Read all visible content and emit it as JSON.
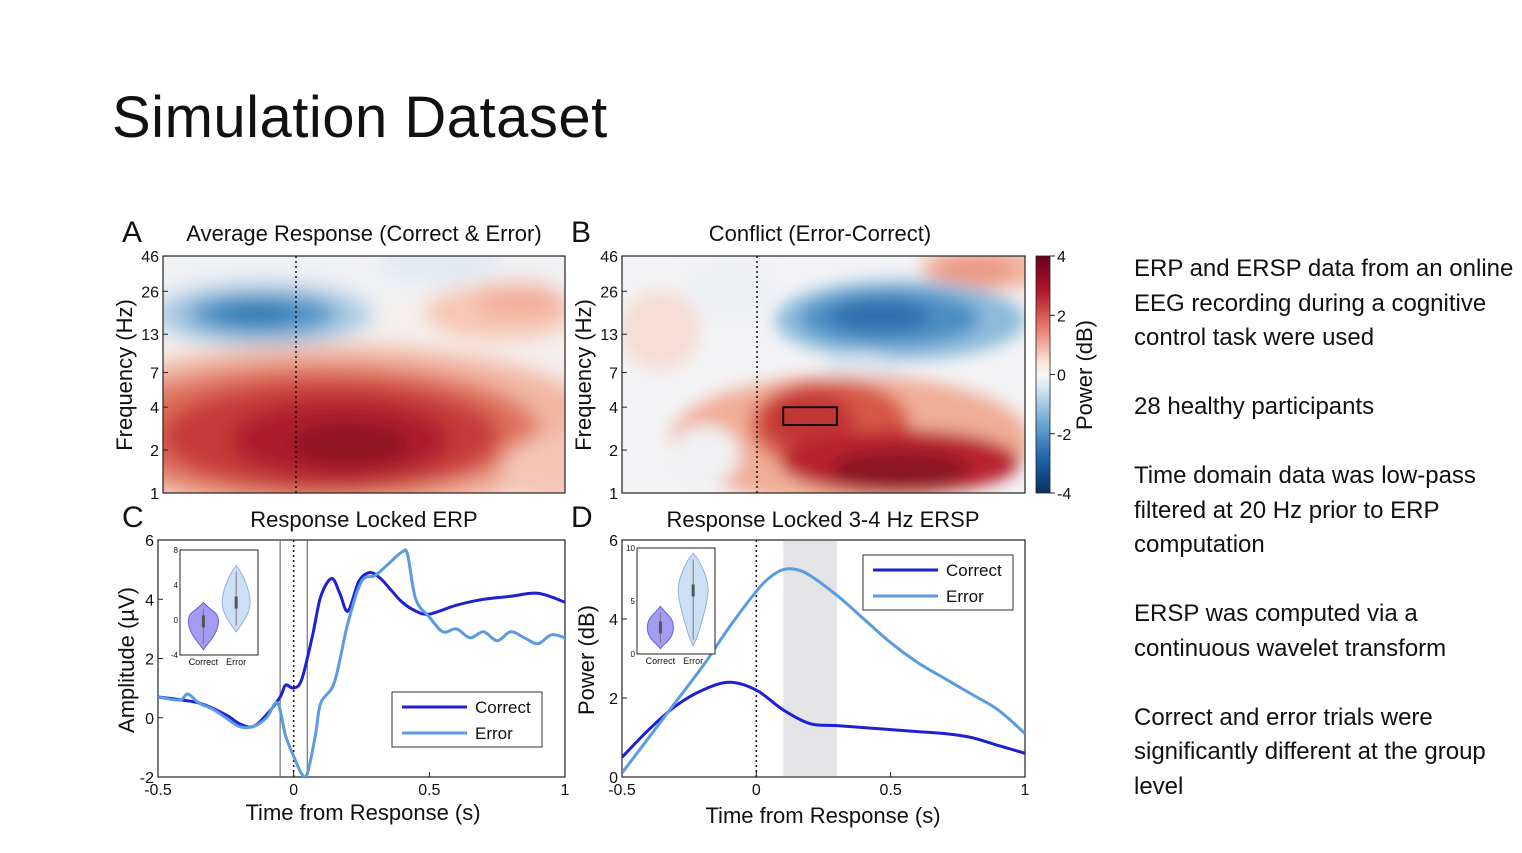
{
  "slide": {
    "title": "Simulation Dataset",
    "bullets": [
      "ERP and ERSP data from an online EEG recording during a cognitive control task were used",
      "28 healthy participants",
      "Time domain data was low-pass filtered at 20 Hz prior to ERP computation",
      "ERSP was computed via a continuous wavelet transform",
      "Correct and error trials were significantly different at the group level"
    ]
  },
  "chart_data": [
    {
      "panel": "A",
      "type": "heatmap",
      "title": "Average Response (Correct & Error)",
      "ylabel": "Frequency (Hz)",
      "yticks": [
        "1",
        "2",
        "4",
        "7",
        "13",
        "26",
        "46"
      ],
      "xlim": [
        -0.5,
        1
      ],
      "zlim": [
        -4,
        4
      ],
      "features": [
        {
          "t": 0.15,
          "f_hz": 2.5,
          "value": 3.8
        },
        {
          "t": 0.0,
          "f_hz": 19,
          "value": -2.5
        },
        {
          "t": 0.9,
          "f_hz": 17,
          "value": 1.2
        }
      ]
    },
    {
      "panel": "B",
      "type": "heatmap",
      "title": "Conflict (Error-Correct)",
      "ylabel": "Frequency (Hz)",
      "yticks": [
        "1",
        "2",
        "4",
        "7",
        "13",
        "26",
        "46"
      ],
      "xlim": [
        -0.5,
        1
      ],
      "zlim": [
        -4,
        4
      ],
      "colorbar": {
        "label": "Power (dB)",
        "ticks": [
          "4",
          "2",
          "0",
          "-2",
          "-4"
        ]
      },
      "roi": {
        "t": [
          0.1,
          0.3
        ],
        "f_hz": [
          3,
          4
        ]
      },
      "features": [
        {
          "t": 0.5,
          "f_hz": 1.5,
          "value": 3.8
        },
        {
          "t": 0.15,
          "f_hz": 3.5,
          "value": 3.0
        },
        {
          "t": 0.45,
          "f_hz": 19,
          "value": -3.2
        },
        {
          "t": 0.8,
          "f_hz": 40,
          "value": 1.5
        }
      ]
    },
    {
      "panel": "C",
      "type": "line",
      "title": "Response Locked ERP",
      "xlabel": "Time from Response (s)",
      "ylabel": "Amplitude (µV)",
      "xlim": [
        -0.5,
        1
      ],
      "ylim": [
        -2,
        6
      ],
      "xticks": [
        "-0.5",
        "0",
        "0.5",
        "1"
      ],
      "yticks": [
        "-2",
        "0",
        "2",
        "4",
        "6"
      ],
      "legend": "bottom-right",
      "series": [
        {
          "name": "Correct",
          "color": "#1f1fd6",
          "x": [
            -0.5,
            -0.35,
            -0.25,
            -0.2,
            -0.15,
            -0.1,
            -0.05,
            -0.03,
            0,
            0.03,
            0.07,
            0.1,
            0.14,
            0.17,
            0.2,
            0.24,
            0.28,
            0.32,
            0.36,
            0.4,
            0.45,
            0.5,
            0.6,
            0.7,
            0.8,
            0.9,
            1.0
          ],
          "y": [
            0.7,
            0.5,
            0.1,
            -0.2,
            -0.3,
            0.1,
            0.7,
            1.1,
            1.0,
            1.3,
            2.8,
            4.1,
            4.7,
            4.2,
            3.6,
            4.6,
            4.9,
            4.7,
            4.3,
            3.9,
            3.6,
            3.5,
            3.8,
            4.0,
            4.1,
            4.2,
            3.9
          ]
        },
        {
          "name": "Error",
          "color": "#5b9be0",
          "x": [
            -0.5,
            -0.42,
            -0.39,
            -0.35,
            -0.3,
            -0.25,
            -0.2,
            -0.15,
            -0.1,
            -0.06,
            -0.03,
            0,
            0.03,
            0.05,
            0.08,
            0.1,
            0.15,
            0.2,
            0.25,
            0.3,
            0.35,
            0.4,
            0.42,
            0.45,
            0.5,
            0.55,
            0.6,
            0.65,
            0.7,
            0.75,
            0.8,
            0.85,
            0.9,
            0.95,
            1.0
          ],
          "y": [
            0.7,
            0.6,
            0.8,
            0.5,
            0.3,
            0.0,
            -0.3,
            -0.3,
            0.0,
            0.5,
            -0.6,
            -1.3,
            -1.9,
            -1.9,
            -0.6,
            0.5,
            1.2,
            3.2,
            4.6,
            4.8,
            5.2,
            5.6,
            5.5,
            4.0,
            3.4,
            2.9,
            3.0,
            2.7,
            2.9,
            2.6,
            2.9,
            2.7,
            2.5,
            2.8,
            2.7
          ]
        }
      ],
      "inset": {
        "type": "violin",
        "categories": [
          "Correct",
          "Error"
        ],
        "yticks": [
          "-4",
          "0",
          "4",
          "8"
        ]
      }
    },
    {
      "panel": "D",
      "type": "line",
      "title": "Response Locked 3-4 Hz ERSP",
      "xlabel": "Time from Response (s)",
      "ylabel": "Power (dB)",
      "xlim": [
        -0.5,
        1
      ],
      "ylim": [
        0,
        6
      ],
      "xticks": [
        "-0.5",
        "0",
        "0.5",
        "1"
      ],
      "yticks": [
        "0",
        "2",
        "4",
        "6"
      ],
      "legend": "top-right",
      "shaded_window": [
        0.1,
        0.3
      ],
      "series": [
        {
          "name": "Correct",
          "color": "#1f1fd6",
          "x": [
            -0.5,
            -0.4,
            -0.3,
            -0.2,
            -0.1,
            0,
            0.1,
            0.2,
            0.3,
            0.4,
            0.5,
            0.6,
            0.7,
            0.8,
            0.9,
            1.0
          ],
          "y": [
            0.5,
            1.2,
            1.8,
            2.2,
            2.4,
            2.2,
            1.7,
            1.35,
            1.3,
            1.25,
            1.2,
            1.15,
            1.1,
            1.0,
            0.8,
            0.6
          ]
        },
        {
          "name": "Error",
          "color": "#5b9be0",
          "x": [
            -0.5,
            -0.4,
            -0.3,
            -0.2,
            -0.1,
            0,
            0.05,
            0.1,
            0.15,
            0.2,
            0.3,
            0.4,
            0.5,
            0.6,
            0.7,
            0.8,
            0.9,
            1.0
          ],
          "y": [
            0.1,
            1.0,
            1.9,
            2.8,
            3.8,
            4.7,
            5.05,
            5.25,
            5.25,
            5.1,
            4.6,
            4.0,
            3.4,
            2.9,
            2.5,
            2.1,
            1.7,
            1.1
          ]
        }
      ],
      "inset": {
        "type": "violin",
        "categories": [
          "Correct",
          "Error"
        ],
        "yticks": [
          "0",
          "5",
          "10"
        ]
      }
    }
  ],
  "labels": {
    "panel_a": "A",
    "panel_b": "B",
    "panel_c": "C",
    "panel_d": "D"
  }
}
